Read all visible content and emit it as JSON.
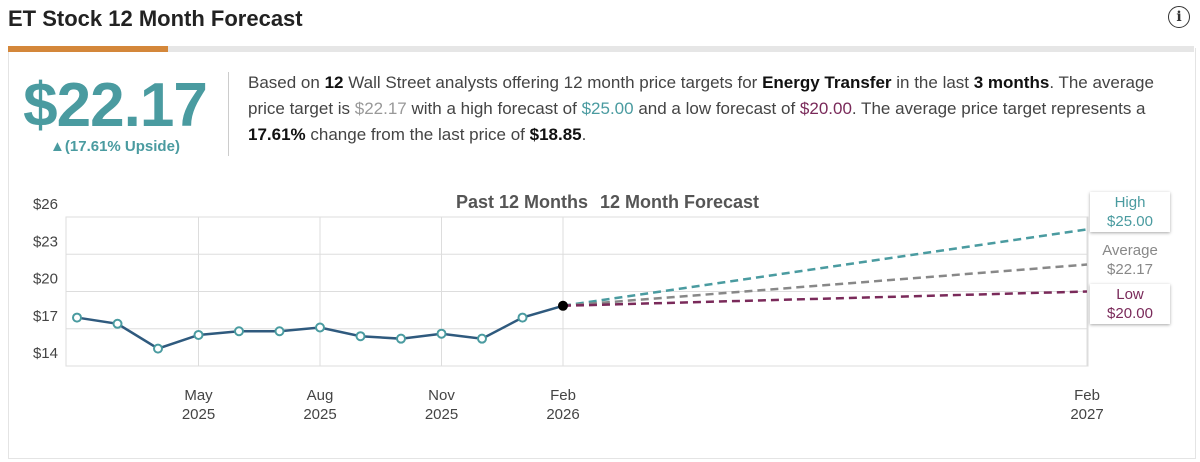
{
  "header": {
    "title": "ET Stock 12 Month Forecast",
    "info_icon": "info-icon"
  },
  "summary": {
    "price": "$22.17",
    "upside": "▲(17.61% Upside)",
    "text": {
      "p1": "Based on ",
      "analysts": "12",
      "p2": " Wall Street analysts offering 12 month price targets for ",
      "company": "Energy Transfer",
      "p3": " in the last ",
      "period": "3 months",
      "p4": ". The average price target is ",
      "avg": "$22.17",
      "p5": " with a high forecast of ",
      "high": "$25.00",
      "p6": " and a low forecast of ",
      "low": "$20.00",
      "p7": ". The average price target represents a ",
      "change": "17.61%",
      "p8": " change from the last price of ",
      "last": "$18.85",
      "p9": "."
    }
  },
  "colors": {
    "accent": "#d4873a",
    "teal": "#4a9ba0",
    "average": "#888888",
    "low": "#7a2a5a",
    "history": "#2f5a7e"
  },
  "chart_data": {
    "type": "line",
    "legend": [
      "Past 12 Months",
      "12 Month Forecast"
    ],
    "ylim": [
      14,
      26
    ],
    "yticks": [
      "$26",
      "$23",
      "$20",
      "$17",
      "$14"
    ],
    "ytick_values": [
      26,
      23,
      20,
      17,
      14
    ],
    "xticks": [
      {
        "month": "May",
        "year": "2025"
      },
      {
        "month": "Aug",
        "year": "2025"
      },
      {
        "month": "Nov",
        "year": "2025"
      },
      {
        "month": "Feb",
        "year": "2026"
      },
      {
        "month": "Feb",
        "year": "2027"
      }
    ],
    "history": {
      "x": [
        "2025-02",
        "2025-03",
        "2025-04",
        "2025-05",
        "2025-06",
        "2025-07",
        "2025-08",
        "2025-09",
        "2025-10",
        "2025-11",
        "2025-12",
        "2026-01",
        "2026-02"
      ],
      "y": [
        17.9,
        17.4,
        15.4,
        16.5,
        16.8,
        16.8,
        17.1,
        16.4,
        16.2,
        16.6,
        16.2,
        17.9,
        18.85
      ]
    },
    "forecast": [
      {
        "name": "High",
        "label": "High",
        "value_label": "$25.00",
        "value": 25.0
      },
      {
        "name": "Average",
        "label": "Average",
        "value_label": "$22.17",
        "value": 22.17
      },
      {
        "name": "Low",
        "label": "Low",
        "value_label": "$20.00",
        "value": 20.0
      }
    ],
    "grid": true
  }
}
